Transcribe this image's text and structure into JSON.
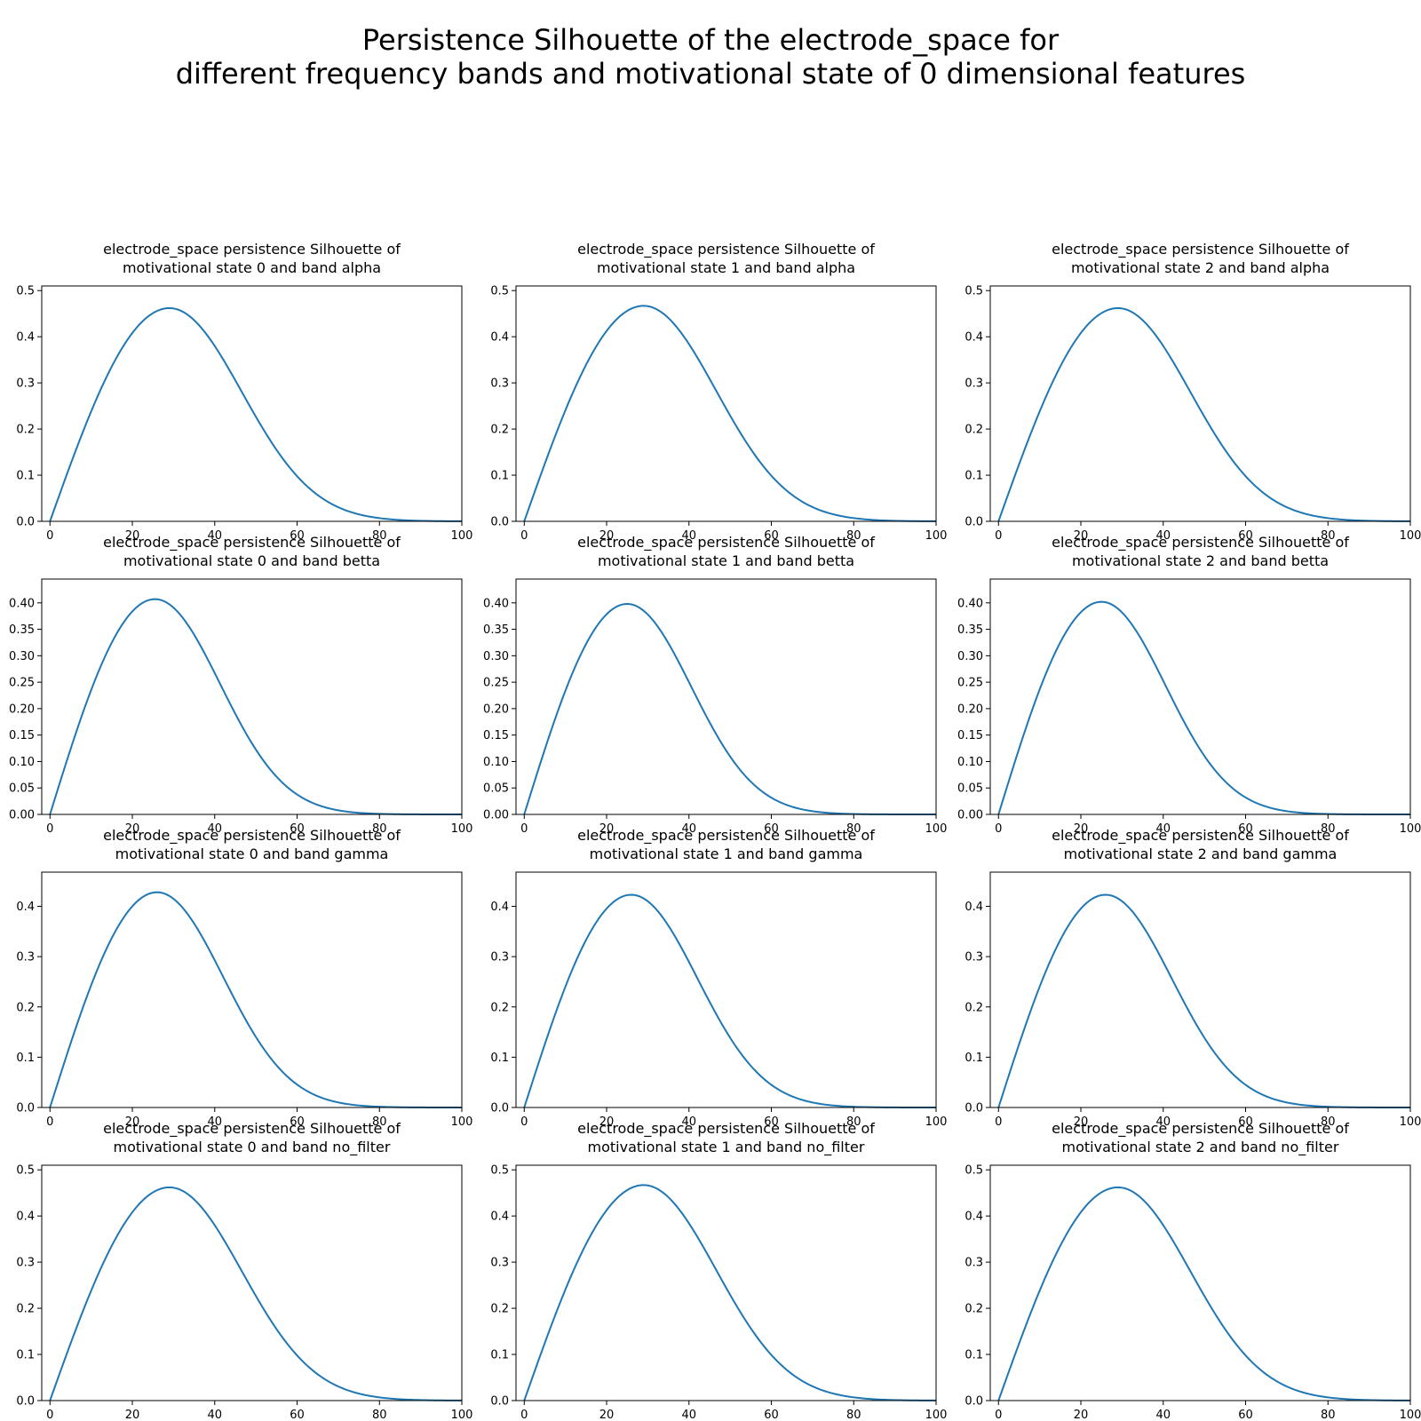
{
  "suptitle": {
    "line1": "Persistence Silhouette of the electrode_space for",
    "line2": "different frequency bands and motivational state of 0 dimensional features"
  },
  "colors": {
    "line": "#1f77b4",
    "axes": "#000000"
  },
  "chart_data": [
    {
      "type": "line",
      "title_line1": "electrode_space persistence Silhouette of",
      "title_line2": "motivational state 0 and band alpha",
      "xlim": [
        0,
        100
      ],
      "ylim": [
        0,
        0.51
      ],
      "xticks": [
        0,
        20,
        40,
        60,
        80,
        100
      ],
      "yticks": [
        "0.0",
        "0.1",
        "0.2",
        "0.3",
        "0.4",
        "0.5"
      ],
      "peak": {
        "x": 29,
        "y": 0.462
      },
      "x": [
        0,
        10,
        20,
        29,
        40,
        50,
        60,
        70,
        80,
        90,
        100
      ],
      "y": [
        0,
        0.196,
        0.379,
        0.462,
        0.36,
        0.206,
        0.088,
        0.025,
        0.005,
        0.001,
        0
      ]
    },
    {
      "type": "line",
      "title_line1": "electrode_space persistence Silhouette of",
      "title_line2": "motivational state 1 and band alpha",
      "xlim": [
        0,
        100
      ],
      "ylim": [
        0,
        0.51
      ],
      "xticks": [
        0,
        20,
        40,
        60,
        80,
        100
      ],
      "yticks": [
        "0.0",
        "0.1",
        "0.2",
        "0.3",
        "0.4",
        "0.5"
      ],
      "peak": {
        "x": 29,
        "y": 0.467
      },
      "x": [
        0,
        10,
        20,
        29,
        40,
        50,
        60,
        70,
        80,
        90,
        100
      ],
      "y": [
        0,
        0.198,
        0.383,
        0.467,
        0.364,
        0.208,
        0.089,
        0.025,
        0.005,
        0.001,
        0
      ]
    },
    {
      "type": "line",
      "title_line1": "electrode_space persistence Silhouette of",
      "title_line2": "motivational state 2 and band alpha",
      "xlim": [
        0,
        100
      ],
      "ylim": [
        0,
        0.51
      ],
      "xticks": [
        0,
        20,
        40,
        60,
        80,
        100
      ],
      "yticks": [
        "0.0",
        "0.1",
        "0.2",
        "0.3",
        "0.4",
        "0.5"
      ],
      "peak": {
        "x": 29,
        "y": 0.462
      },
      "x": [
        0,
        10,
        20,
        29,
        40,
        50,
        60,
        70,
        80,
        90,
        100
      ],
      "y": [
        0,
        0.196,
        0.379,
        0.462,
        0.36,
        0.206,
        0.088,
        0.025,
        0.005,
        0.001,
        0
      ]
    },
    {
      "type": "line",
      "title_line1": "electrode_space persistence Silhouette of",
      "title_line2": "motivational state 0 and band betta",
      "xlim": [
        0,
        100
      ],
      "ylim": [
        0,
        0.445
      ],
      "xticks": [
        0,
        20,
        40,
        60,
        80,
        100
      ],
      "yticks": [
        "0.00",
        "0.05",
        "0.10",
        "0.15",
        "0.20",
        "0.25",
        "0.30",
        "0.35",
        "0.40"
      ],
      "peak": {
        "x": 25.5,
        "y": 0.407
      },
      "x": [
        0,
        10,
        20,
        25.5,
        40,
        50,
        60,
        70,
        80,
        90,
        100
      ],
      "y": [
        0,
        0.172,
        0.361,
        0.407,
        0.266,
        0.131,
        0.05,
        0.014,
        0.003,
        0,
        0
      ]
    },
    {
      "type": "line",
      "title_line1": "electrode_space persistence Silhouette of",
      "title_line2": "motivational state 1 and band betta",
      "xlim": [
        0,
        100
      ],
      "ylim": [
        0,
        0.445
      ],
      "xticks": [
        0,
        20,
        40,
        60,
        80,
        100
      ],
      "yticks": [
        "0.00",
        "0.05",
        "0.10",
        "0.15",
        "0.20",
        "0.25",
        "0.30",
        "0.35",
        "0.40"
      ],
      "peak": {
        "x": 25,
        "y": 0.398
      },
      "x": [
        0,
        10,
        20,
        25,
        40,
        50,
        60,
        70,
        80,
        90,
        100
      ],
      "y": [
        0,
        0.169,
        0.355,
        0.398,
        0.255,
        0.124,
        0.047,
        0.013,
        0.002,
        0,
        0
      ]
    },
    {
      "type": "line",
      "title_line1": "electrode_space persistence Silhouette of",
      "title_line2": "motivational state 2 and band betta",
      "xlim": [
        0,
        100
      ],
      "ylim": [
        0,
        0.445
      ],
      "xticks": [
        0,
        20,
        40,
        60,
        80,
        100
      ],
      "yticks": [
        "0.00",
        "0.05",
        "0.10",
        "0.15",
        "0.20",
        "0.25",
        "0.30",
        "0.35",
        "0.40"
      ],
      "peak": {
        "x": 25,
        "y": 0.402
      },
      "x": [
        0,
        10,
        20,
        25,
        40,
        50,
        60,
        70,
        80,
        90,
        100
      ],
      "y": [
        0,
        0.171,
        0.358,
        0.402,
        0.258,
        0.126,
        0.048,
        0.013,
        0.002,
        0,
        0
      ]
    },
    {
      "type": "line",
      "title_line1": "electrode_space persistence Silhouette of",
      "title_line2": "motivational state 0 and band gamma",
      "xlim": [
        0,
        100
      ],
      "ylim": [
        0,
        0.468
      ],
      "xticks": [
        0,
        20,
        40,
        60,
        80,
        100
      ],
      "yticks": [
        "0.0",
        "0.1",
        "0.2",
        "0.3",
        "0.4"
      ],
      "peak": {
        "x": 26,
        "y": 0.428
      },
      "x": [
        0,
        10,
        20,
        26,
        40,
        50,
        60,
        70,
        80,
        90,
        100
      ],
      "y": [
        0,
        0.179,
        0.374,
        0.428,
        0.292,
        0.151,
        0.063,
        0.019,
        0.004,
        0.001,
        0
      ]
    },
    {
      "type": "line",
      "title_line1": "electrode_space persistence Silhouette of",
      "title_line2": "motivational state 1 and band gamma",
      "xlim": [
        0,
        100
      ],
      "ylim": [
        0,
        0.468
      ],
      "xticks": [
        0,
        20,
        40,
        60,
        80,
        100
      ],
      "yticks": [
        "0.0",
        "0.1",
        "0.2",
        "0.3",
        "0.4"
      ],
      "peak": {
        "x": 26,
        "y": 0.423
      },
      "x": [
        0,
        10,
        20,
        26,
        40,
        50,
        60,
        70,
        80,
        90,
        100
      ],
      "y": [
        0,
        0.177,
        0.37,
        0.423,
        0.288,
        0.149,
        0.062,
        0.019,
        0.004,
        0.001,
        0
      ]
    },
    {
      "type": "line",
      "title_line1": "electrode_space persistence Silhouette of",
      "title_line2": "motivational state 2 and band gamma",
      "xlim": [
        0,
        100
      ],
      "ylim": [
        0,
        0.468
      ],
      "xticks": [
        0,
        20,
        40,
        60,
        80,
        100
      ],
      "yticks": [
        "0.0",
        "0.1",
        "0.2",
        "0.3",
        "0.4"
      ],
      "peak": {
        "x": 26,
        "y": 0.423
      },
      "x": [
        0,
        10,
        20,
        26,
        40,
        50,
        60,
        70,
        80,
        90,
        100
      ],
      "y": [
        0,
        0.177,
        0.37,
        0.423,
        0.288,
        0.149,
        0.062,
        0.019,
        0.004,
        0.001,
        0
      ]
    },
    {
      "type": "line",
      "title_line1": "electrode_space persistence Silhouette of",
      "title_line2": "motivational state 0 and band no_filter",
      "xlim": [
        0,
        100
      ],
      "ylim": [
        0,
        0.51
      ],
      "xticks": [
        0,
        20,
        40,
        60,
        80,
        100
      ],
      "yticks": [
        "0.0",
        "0.1",
        "0.2",
        "0.3",
        "0.4",
        "0.5"
      ],
      "peak": {
        "x": 29,
        "y": 0.462
      },
      "x": [
        0,
        10,
        20,
        29,
        40,
        50,
        60,
        70,
        80,
        90,
        100
      ],
      "y": [
        0,
        0.196,
        0.379,
        0.462,
        0.36,
        0.206,
        0.088,
        0.025,
        0.005,
        0.001,
        0
      ]
    },
    {
      "type": "line",
      "title_line1": "electrode_space persistence Silhouette of",
      "title_line2": "motivational state 1 and band no_filter",
      "xlim": [
        0,
        100
      ],
      "ylim": [
        0,
        0.51
      ],
      "xticks": [
        0,
        20,
        40,
        60,
        80,
        100
      ],
      "yticks": [
        "0.0",
        "0.1",
        "0.2",
        "0.3",
        "0.4",
        "0.5"
      ],
      "peak": {
        "x": 29,
        "y": 0.467
      },
      "x": [
        0,
        10,
        20,
        29,
        40,
        50,
        60,
        70,
        80,
        90,
        100
      ],
      "y": [
        0,
        0.198,
        0.383,
        0.467,
        0.364,
        0.208,
        0.089,
        0.025,
        0.005,
        0.001,
        0
      ]
    },
    {
      "type": "line",
      "title_line1": "electrode_space persistence Silhouette of",
      "title_line2": "motivational state 2 and band no_filter",
      "xlim": [
        0,
        100
      ],
      "ylim": [
        0,
        0.51
      ],
      "xticks": [
        0,
        20,
        40,
        60,
        80,
        100
      ],
      "yticks": [
        "0.0",
        "0.1",
        "0.2",
        "0.3",
        "0.4",
        "0.5"
      ],
      "peak": {
        "x": 29,
        "y": 0.462
      },
      "x": [
        0,
        10,
        20,
        29,
        40,
        50,
        60,
        70,
        80,
        90,
        100
      ],
      "y": [
        0,
        0.196,
        0.379,
        0.462,
        0.36,
        0.206,
        0.088,
        0.025,
        0.005,
        0.001,
        0
      ]
    }
  ]
}
